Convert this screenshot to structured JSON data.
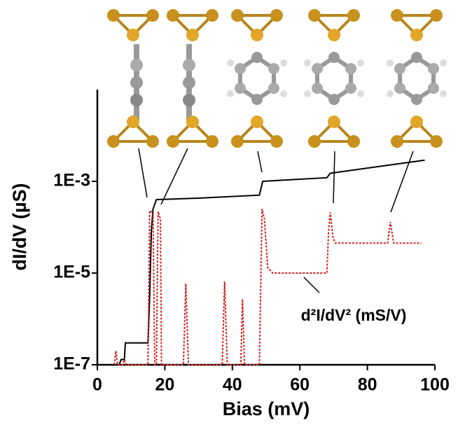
{
  "chart_data": {
    "type": "line",
    "log_y": true,
    "x_label": "Bias (mV)",
    "y_label": "dI/dV (µS)",
    "annotation": "d²I/dV² (mS/V)",
    "xlim": [
      0,
      100
    ],
    "xticks": [
      0,
      20,
      40,
      60,
      80,
      100
    ],
    "ylim": [
      1e-07,
      0.1
    ],
    "yticks": [
      {
        "value": 1e-07,
        "label": "1E-7"
      },
      {
        "value": 1e-05,
        "label": "1E-5"
      },
      {
        "value": 0.001,
        "label": "1E-3"
      }
    ],
    "series": [
      {
        "color": "#000000",
        "dash": "solid",
        "x": [
          5,
          6.5,
          7,
          8,
          8.3,
          15,
          15.5,
          16,
          16.5,
          17.5,
          30,
          48,
          49,
          68,
          69,
          97
        ],
        "values": [
          1e-07,
          1e-07,
          1.3e-07,
          1.3e-07,
          3e-07,
          3e-07,
          3e-06,
          8e-05,
          0.00025,
          0.0004,
          0.00043,
          0.0005,
          0.001,
          0.0012,
          0.0015,
          0.0029
        ]
      },
      {
        "color": "#d42020",
        "dash": "dotted",
        "x": [
          5,
          5.5,
          6,
          7.5,
          8,
          8.5,
          15,
          15.5,
          16.5,
          17,
          17.5,
          18,
          18.7,
          19,
          25.5,
          26.2,
          27,
          37,
          37.7,
          38.5,
          42.5,
          43,
          43.6,
          48,
          48.8,
          49.5,
          50.5,
          52,
          68,
          68.5,
          69,
          69.8,
          70.5,
          86,
          86.8,
          87.8,
          96
        ],
        "values": [
          1e-07,
          2e-07,
          1e-07,
          1e-07,
          1.3e-07,
          1e-07,
          1e-07,
          0.00023,
          0.0002,
          1e-07,
          1e-07,
          0.00022,
          0.00015,
          1e-07,
          1e-07,
          5.9e-06,
          1e-07,
          1e-07,
          6.5e-06,
          1e-07,
          1e-07,
          2.7e-06,
          1e-07,
          1e-07,
          0.00025,
          0.00015,
          1.3e-05,
          1e-05,
          1e-05,
          8e-05,
          0.00021,
          6e-05,
          4.5e-05,
          4.5e-05,
          0.00013,
          4.5e-05,
          4.5e-05
        ]
      }
    ]
  }
}
